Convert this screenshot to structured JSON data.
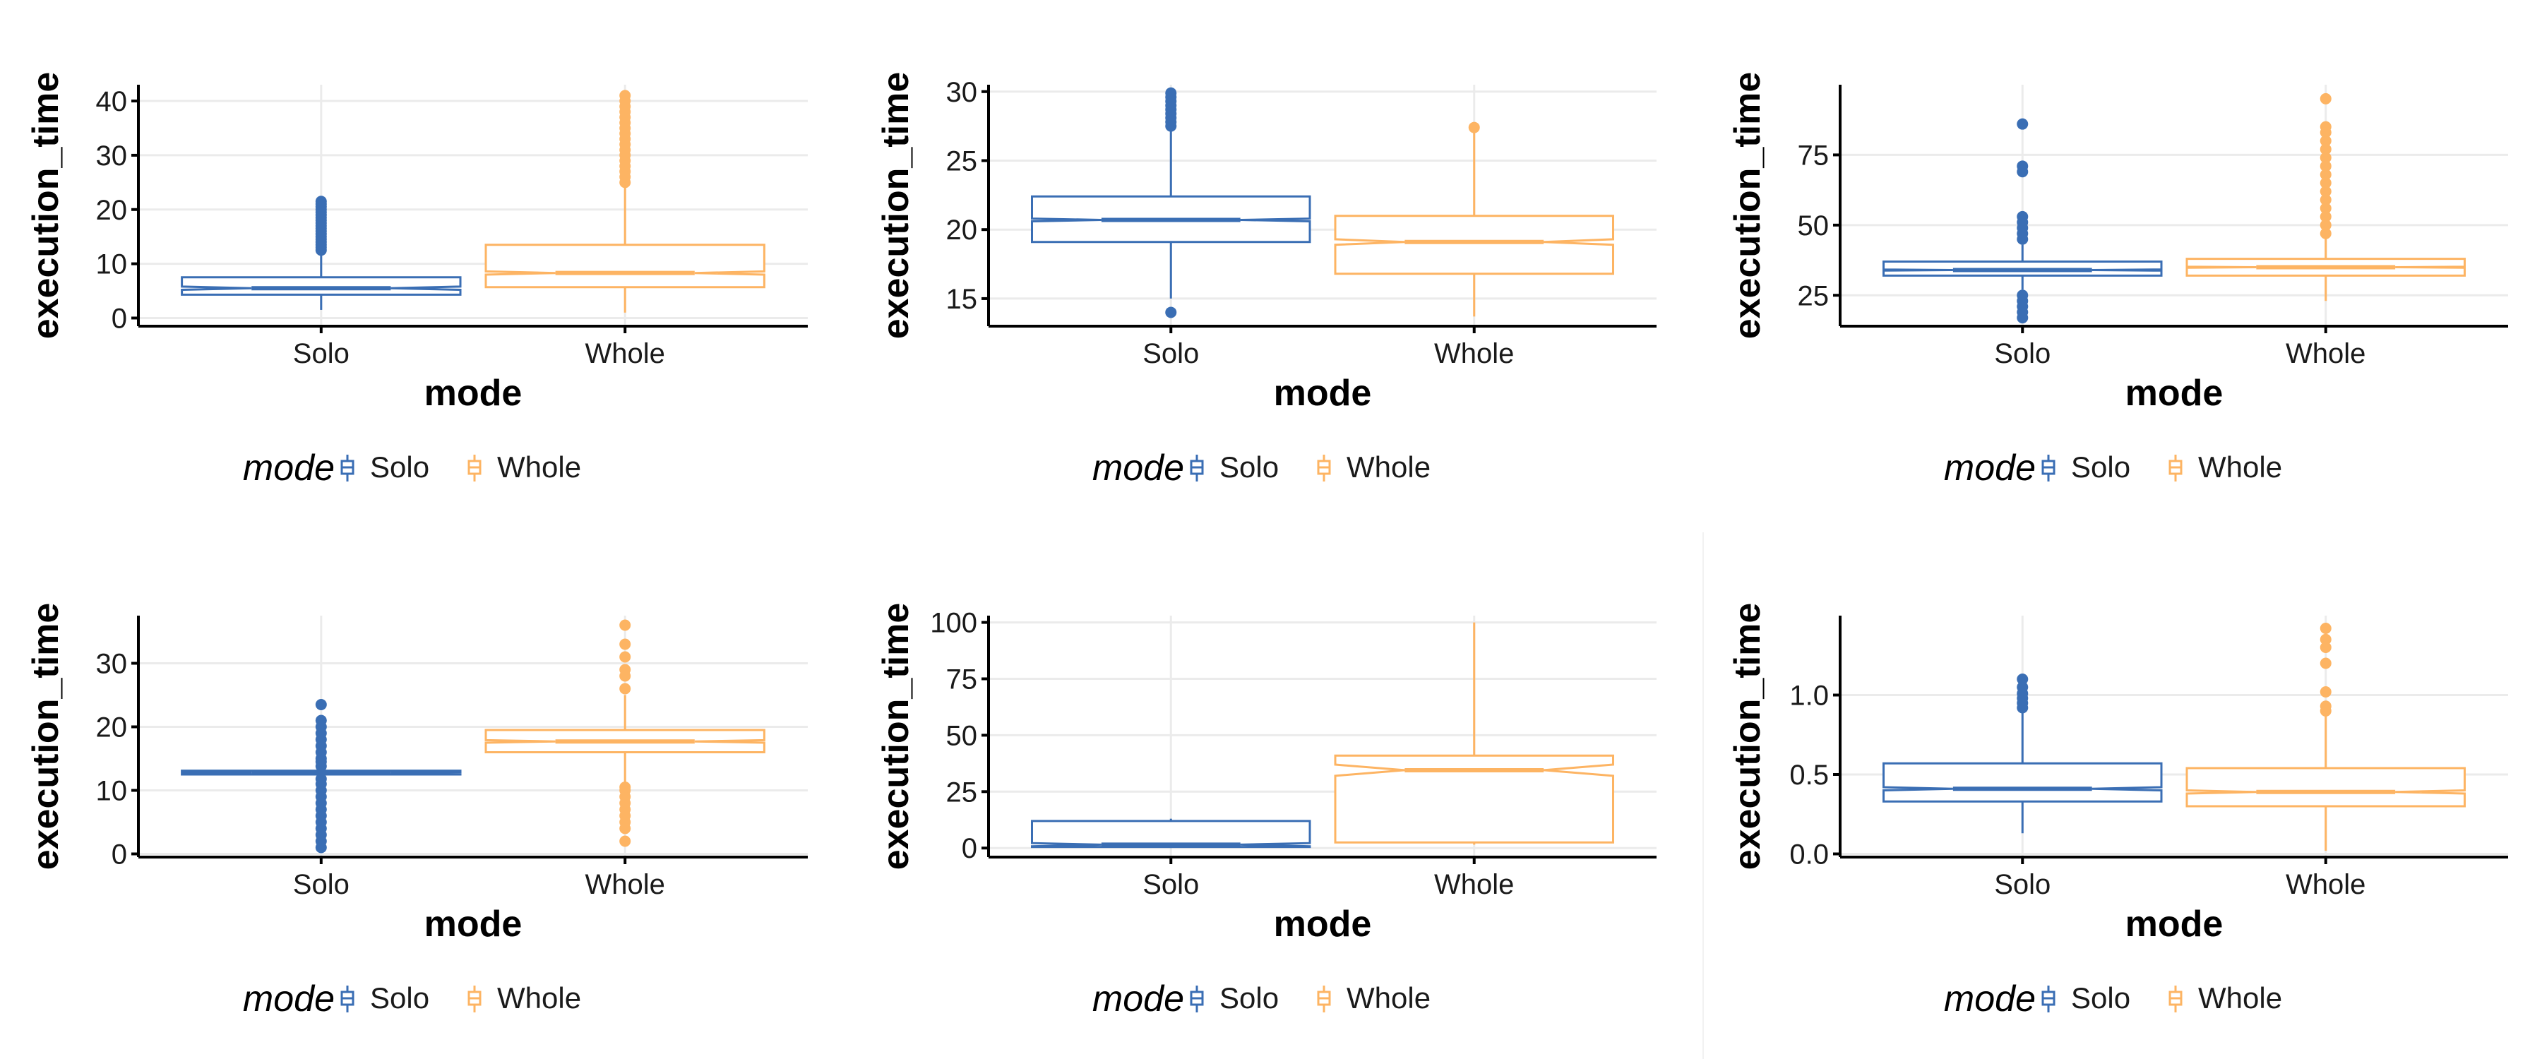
{
  "colors": {
    "solo": "#3a6eb4",
    "whole": "#fdb463",
    "grid": "#ebebeb",
    "axis": "#000000",
    "text": "#1a1a1a"
  },
  "chart_data": [
    {
      "type": "boxplot",
      "xlabel": "mode",
      "ylabel": "execution_time",
      "ylim": [
        -1.5,
        43
      ],
      "yticks": [
        0,
        10,
        20,
        30,
        40
      ],
      "yticklabels": [
        "0",
        "10",
        "20",
        "30",
        "40"
      ],
      "grid": true,
      "legend": {
        "title": "mode",
        "entries": [
          "Solo",
          "Whole"
        ],
        "position": "bottom"
      },
      "categories": [
        "Solo",
        "Whole"
      ],
      "boxes": [
        {
          "category": "Solo",
          "whisker_low": 1.5,
          "q1": 4.3,
          "median": 5.5,
          "q3": 7.5,
          "whisker_high": 12.2,
          "notch_low": 5.2,
          "notch_high": 5.8,
          "outliers": [
            12.5,
            13,
            13.5,
            14,
            14.5,
            15,
            15.5,
            16,
            16.5,
            17,
            17.5,
            18,
            18.5,
            19,
            19.5,
            20,
            20.5,
            21,
            21.5
          ]
        },
        {
          "category": "Whole",
          "whisker_low": 1,
          "q1": 5.7,
          "median": 8.3,
          "q3": 13.5,
          "whisker_high": 24.5,
          "notch_low": 8,
          "notch_high": 8.6,
          "outliers": [
            25,
            26,
            27,
            28,
            29,
            30,
            31,
            32,
            33,
            34,
            35,
            36,
            37,
            38,
            39,
            40,
            41
          ]
        }
      ]
    },
    {
      "type": "boxplot",
      "xlabel": "mode",
      "ylabel": "execution_time",
      "ylim": [
        13,
        30.5
      ],
      "yticks": [
        15,
        20,
        25,
        30
      ],
      "yticklabels": [
        "15",
        "20",
        "25",
        "30"
      ],
      "grid": true,
      "legend": {
        "title": "mode",
        "entries": [
          "Solo",
          "Whole"
        ],
        "position": "bottom"
      },
      "categories": [
        "Solo",
        "Whole"
      ],
      "boxes": [
        {
          "category": "Solo",
          "whisker_low": 15,
          "q1": 19.1,
          "median": 20.7,
          "q3": 22.4,
          "whisker_high": 27.2,
          "notch_low": 20.6,
          "notch_high": 20.8,
          "outliers": [
            14,
            27.5,
            27.8,
            28.1,
            28.4,
            28.7,
            29,
            29.3,
            29.6,
            29.9
          ]
        },
        {
          "category": "Whole",
          "whisker_low": 13.7,
          "q1": 16.8,
          "median": 19.1,
          "q3": 21,
          "whisker_high": 27,
          "notch_low": 18.9,
          "notch_high": 19.3,
          "outliers": [
            27.4
          ]
        }
      ]
    },
    {
      "type": "boxplot",
      "xlabel": "mode",
      "ylabel": "execution_time",
      "ylim": [
        14,
        100
      ],
      "yticks": [
        25,
        50,
        75
      ],
      "yticklabels": [
        "25",
        "50",
        "75"
      ],
      "grid": true,
      "legend": {
        "title": "mode",
        "entries": [
          "Solo",
          "Whole"
        ],
        "position": "bottom"
      },
      "categories": [
        "Solo",
        "Whole"
      ],
      "boxes": [
        {
          "category": "Solo",
          "whisker_low": 27,
          "q1": 32,
          "median": 34,
          "q3": 37,
          "whisker_high": 43,
          "notch_low": 33.8,
          "notch_high": 34.2,
          "outliers": [
            17,
            19,
            21,
            23,
            25,
            45,
            47,
            49,
            51,
            53,
            69,
            71,
            86
          ]
        },
        {
          "category": "Whole",
          "whisker_low": 23,
          "q1": 32,
          "median": 35,
          "q3": 38,
          "whisker_high": 46,
          "notch_low": 34.8,
          "notch_high": 35.2,
          "outliers": [
            47,
            50,
            53,
            56,
            59,
            62,
            65,
            68,
            71,
            74,
            77,
            80,
            83,
            85,
            95
          ]
        }
      ]
    },
    {
      "type": "boxplot",
      "xlabel": "mode",
      "ylabel": "execution_time",
      "ylim": [
        -0.5,
        37.5
      ],
      "yticks": [
        0,
        10,
        20,
        30
      ],
      "yticklabels": [
        "0",
        "10",
        "20",
        "30"
      ],
      "grid": true,
      "legend": {
        "title": "mode",
        "entries": [
          "Solo",
          "Whole"
        ],
        "position": "bottom"
      },
      "categories": [
        "Solo",
        "Whole"
      ],
      "boxes": [
        {
          "category": "Solo",
          "whisker_low": 12.2,
          "q1": 12.5,
          "median": 12.8,
          "q3": 13.1,
          "whisker_high": 13.4,
          "notch_low": 12.75,
          "notch_high": 12.85,
          "outliers": [
            1,
            2,
            3,
            4,
            5,
            6,
            7,
            8,
            9,
            10,
            11,
            11.8,
            13.8,
            14.5,
            15,
            16,
            17,
            18,
            19,
            20,
            21,
            23.5
          ]
        },
        {
          "category": "Whole",
          "whisker_low": 10.8,
          "q1": 16,
          "median": 17.7,
          "q3": 19.5,
          "whisker_high": 25,
          "notch_low": 17.5,
          "notch_high": 17.9,
          "outliers": [
            2,
            4,
            5,
            6,
            7,
            8,
            9,
            10,
            10.5,
            26,
            28,
            29,
            31,
            33,
            36
          ]
        }
      ]
    },
    {
      "type": "boxplot",
      "xlabel": "mode",
      "ylabel": "execution_time",
      "ylim": [
        -4,
        103
      ],
      "yticks": [
        0,
        25,
        50,
        75,
        100
      ],
      "yticklabels": [
        "0",
        "25",
        "50",
        "75",
        "100"
      ],
      "grid": true,
      "legend": {
        "title": "mode",
        "entries": [
          "Solo",
          "Whole"
        ],
        "position": "bottom"
      },
      "categories": [
        "Solo",
        "Whole"
      ],
      "boxes": [
        {
          "category": "Solo",
          "whisker_low": 0,
          "q1": 0.5,
          "median": 1.5,
          "q3": 12,
          "whisker_high": 13,
          "notch_low": 0.8,
          "notch_high": 2.2,
          "outliers": []
        },
        {
          "category": "Whole",
          "whisker_low": 1.5,
          "q1": 2.5,
          "median": 34.5,
          "q3": 41,
          "whisker_high": 100,
          "notch_low": 32,
          "notch_high": 37,
          "outliers": []
        }
      ]
    },
    {
      "type": "boxplot",
      "xlabel": "mode",
      "ylabel": "execution_time",
      "ylim": [
        -0.02,
        1.5
      ],
      "yticks": [
        0,
        0.5,
        1
      ],
      "yticklabels": [
        "0.0",
        "0.5",
        "1.0"
      ],
      "grid": true,
      "legend": {
        "title": "mode",
        "entries": [
          "Solo",
          "Whole"
        ],
        "position": "bottom"
      },
      "categories": [
        "Solo",
        "Whole"
      ],
      "boxes": [
        {
          "category": "Solo",
          "whisker_low": 0.13,
          "q1": 0.33,
          "median": 0.41,
          "q3": 0.57,
          "whisker_high": 0.9,
          "notch_low": 0.4,
          "notch_high": 0.42,
          "outliers": [
            0.92,
            0.95,
            0.98,
            1.01,
            1.05,
            1.1
          ]
        },
        {
          "category": "Whole",
          "whisker_low": 0.02,
          "q1": 0.3,
          "median": 0.39,
          "q3": 0.54,
          "whisker_high": 0.88,
          "notch_low": 0.38,
          "notch_high": 0.4,
          "outliers": [
            0.9,
            0.93,
            1.02,
            1.2,
            1.3,
            1.35,
            1.42
          ]
        }
      ]
    }
  ]
}
